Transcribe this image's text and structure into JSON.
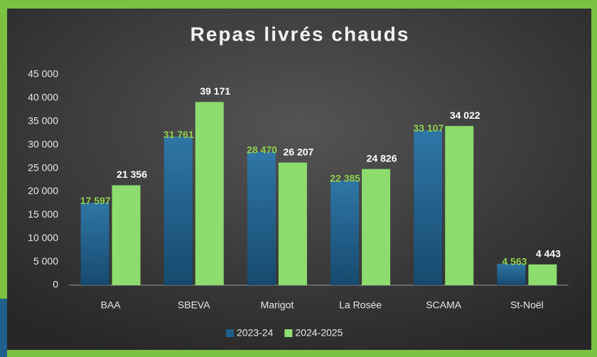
{
  "chart_data": {
    "type": "bar",
    "title": "Repas livrés chauds",
    "categories": [
      "BAA",
      "SBEVA",
      "Marigot",
      "La Rosée",
      "SCAMA",
      "St-Noël"
    ],
    "series": [
      {
        "name": "2023-24",
        "color": "#1f5f8b",
        "values": [
          17597,
          31761,
          28470,
          22385,
          33107,
          4563
        ],
        "value_labels": [
          "17 597",
          "31 761",
          "28 470",
          "22 385",
          "33 107",
          "4 563"
        ]
      },
      {
        "name": "2024-2025",
        "color": "#8ddc6e",
        "values": [
          21356,
          39171,
          26207,
          24826,
          34022,
          4443
        ],
        "value_labels": [
          "21 356",
          "39 171",
          "26 207",
          "24 826",
          "34 022",
          "4 443"
        ]
      }
    ],
    "ylim": [
      0,
      45000
    ],
    "yticks": [
      0,
      {
        "value": 5000,
        "label": "5 000"
      },
      {
        "value": 10000,
        "label": "10 000"
      },
      {
        "value": 15000,
        "label": "15 000"
      },
      {
        "value": 20000,
        "label": "20 000"
      },
      {
        "value": 25000,
        "label": "25 000"
      },
      {
        "value": 30000,
        "label": "30 000"
      },
      {
        "value": 35000,
        "label": "35 000"
      },
      {
        "value": 40000,
        "label": "40 000"
      },
      {
        "value": 45000,
        "label": "45 000"
      }
    ],
    "grid": false,
    "legend": "bottom"
  }
}
